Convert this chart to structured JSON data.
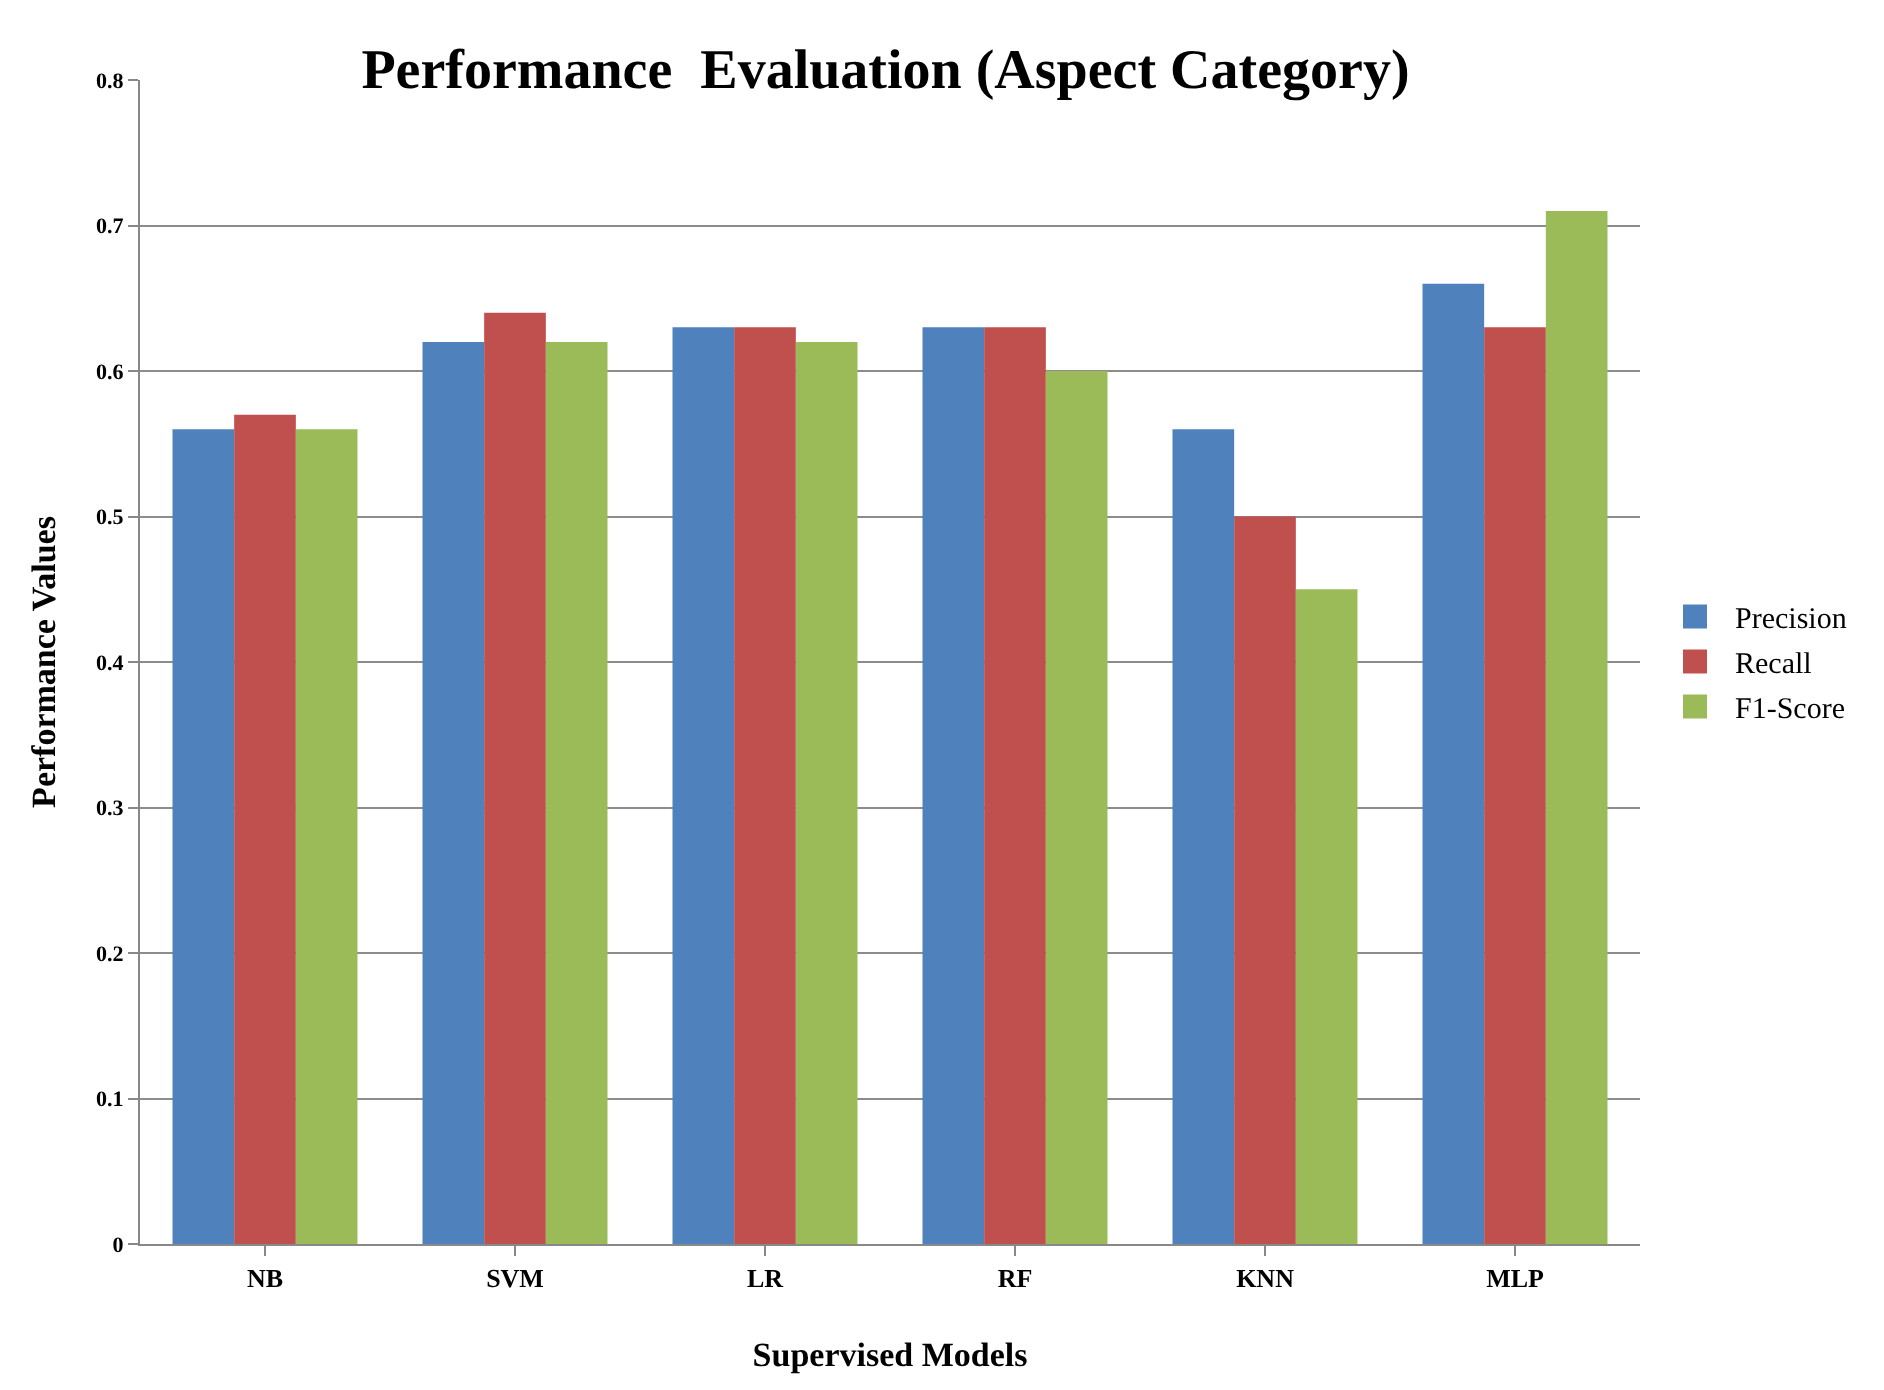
{
  "chart_data": {
    "type": "bar",
    "title": "Performance  Evaluation (Aspect Category)",
    "xlabel": "Supervised Models",
    "ylabel": "Performance Values",
    "categories": [
      "NB",
      "SVM",
      "LR",
      "RF",
      "KNN",
      "MLP"
    ],
    "series": [
      {
        "name": "Precision",
        "color": "#4f81bd",
        "values": [
          0.56,
          0.62,
          0.63,
          0.63,
          0.56,
          0.66
        ]
      },
      {
        "name": "Recall",
        "color": "#c0504d",
        "values": [
          0.57,
          0.64,
          0.63,
          0.63,
          0.5,
          0.63
        ]
      },
      {
        "name": "F1-Score",
        "color": "#9bbb59",
        "values": [
          0.56,
          0.62,
          0.62,
          0.6,
          0.45,
          0.71
        ]
      }
    ],
    "ylim": [
      0,
      0.8
    ],
    "yticks": [
      0,
      0.1,
      0.2,
      0.3,
      0.4,
      0.5,
      0.6,
      0.7,
      0.8
    ],
    "grid": "y",
    "legend": "right"
  }
}
